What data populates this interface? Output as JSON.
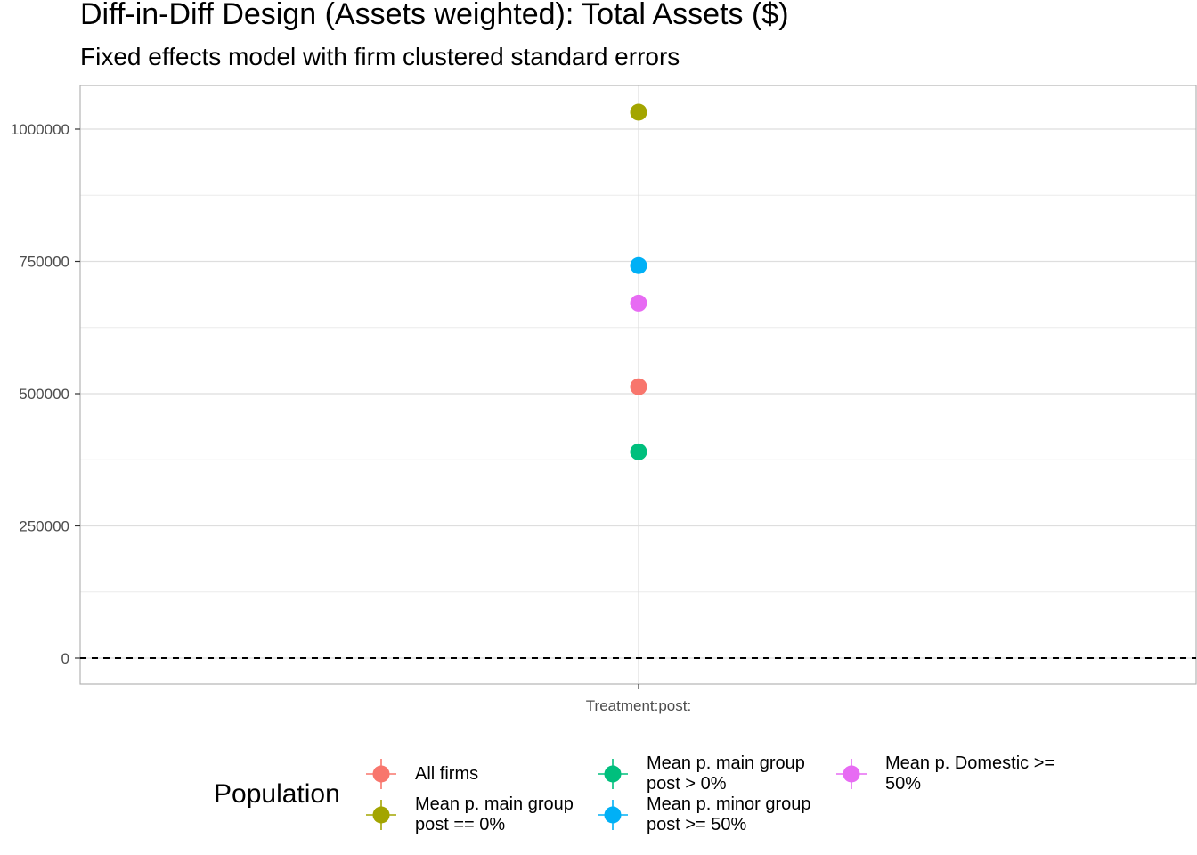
{
  "chart_data": {
    "type": "scatter",
    "title": "Diff-in-Diff Design (Assets weighted): Total Assets ($)",
    "subtitle": "Fixed effects model with firm clustered standard errors",
    "xlabel": "",
    "ylabel": "",
    "categories": [
      "Treatment:post:"
    ],
    "ylim": [
      -50000,
      1080000
    ],
    "yticks": [
      0,
      250000,
      500000,
      750000,
      1000000
    ],
    "yticklabels": [
      "0",
      "250000",
      "500000",
      "750000",
      "1000000"
    ],
    "grid": true,
    "reference_line": {
      "y": 0,
      "style": "dashed"
    },
    "legend_title": "Population",
    "legend_position": "bottom",
    "series": [
      {
        "name": "All firms",
        "color": "#F8766D",
        "values": [
          513000
        ]
      },
      {
        "name": "Mean p. main group\npost == 0%",
        "color": "#A3A500",
        "values": [
          1032000
        ]
      },
      {
        "name": "Mean p. main group\npost > 0%",
        "color": "#00BF7D",
        "values": [
          390000
        ]
      },
      {
        "name": "Mean p. minor group\npost >= 50%",
        "color": "#00B0F6",
        "values": [
          742000
        ]
      },
      {
        "name": "Mean p. Domestic >=\n50%",
        "color": "#E76BF3",
        "values": [
          671000
        ]
      }
    ]
  }
}
